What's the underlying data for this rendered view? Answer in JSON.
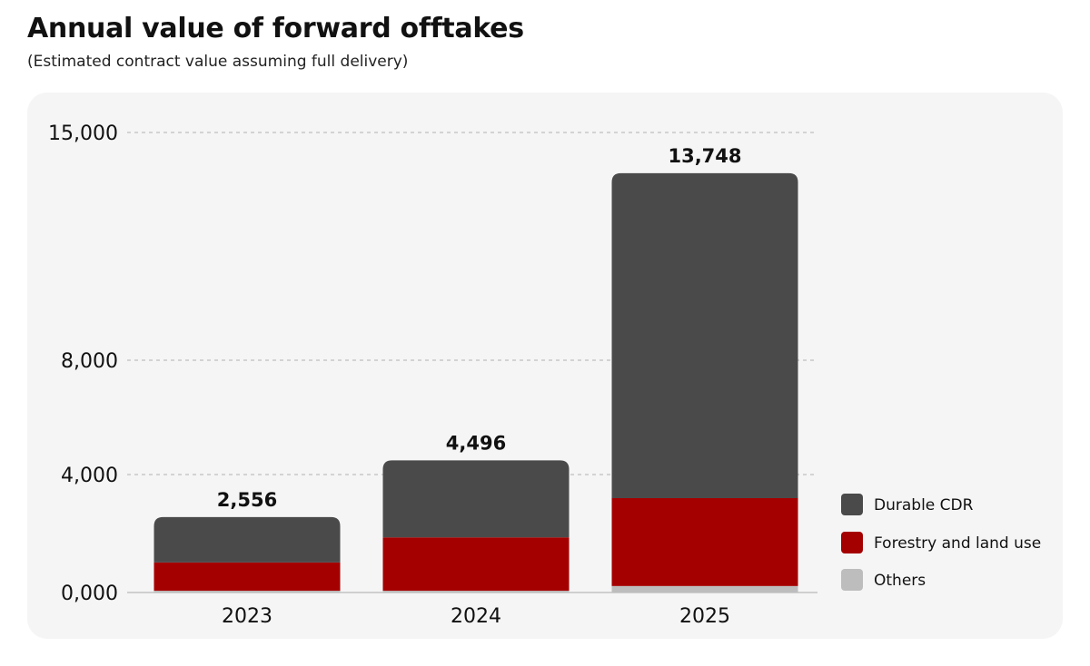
{
  "title": "Annual value of forward offtakes",
  "subtitle": "(Estimated contract value assuming full delivery)",
  "colors": {
    "durable": "#4a4a4a",
    "forestry": "#a50000",
    "others": "#bdbdbd",
    "grid": "#c8c8c8",
    "panel": "#f5f5f5"
  },
  "chart_data": {
    "type": "bar",
    "stacked": true,
    "title": "Annual value of forward offtakes",
    "subtitle": "(Estimated contract value assuming full delivery)",
    "categories": [
      "2023",
      "2024",
      "2025"
    ],
    "series": [
      {
        "name": "Others",
        "color": "#bdbdbd",
        "values": [
          60,
          60,
          220
        ]
      },
      {
        "name": "Forestry and land use",
        "color": "#a50000",
        "values": [
          960,
          1810,
          2980
        ]
      },
      {
        "name": "Durable CDR",
        "color": "#4a4a4a",
        "values": [
          1536,
          2626,
          10548
        ]
      }
    ],
    "totals": [
      "2,556",
      "4,496",
      "13,748"
    ],
    "total_values": [
      2556,
      4496,
      13748
    ],
    "y_ticks": [
      {
        "value": 0,
        "label": "0,000"
      },
      {
        "value": 4000,
        "label": "4,000"
      },
      {
        "value": 8000,
        "label": "8,000"
      },
      {
        "value": 15000,
        "label": "15,000"
      }
    ],
    "ylim": [
      0,
      15000
    ],
    "grid": true,
    "legend": {
      "placement": "right",
      "entries": [
        {
          "name": "Durable CDR",
          "color": "#4a4a4a"
        },
        {
          "name": "Forestry and land use",
          "color": "#a50000"
        },
        {
          "name": "Others",
          "color": "#bdbdbd"
        }
      ]
    }
  }
}
